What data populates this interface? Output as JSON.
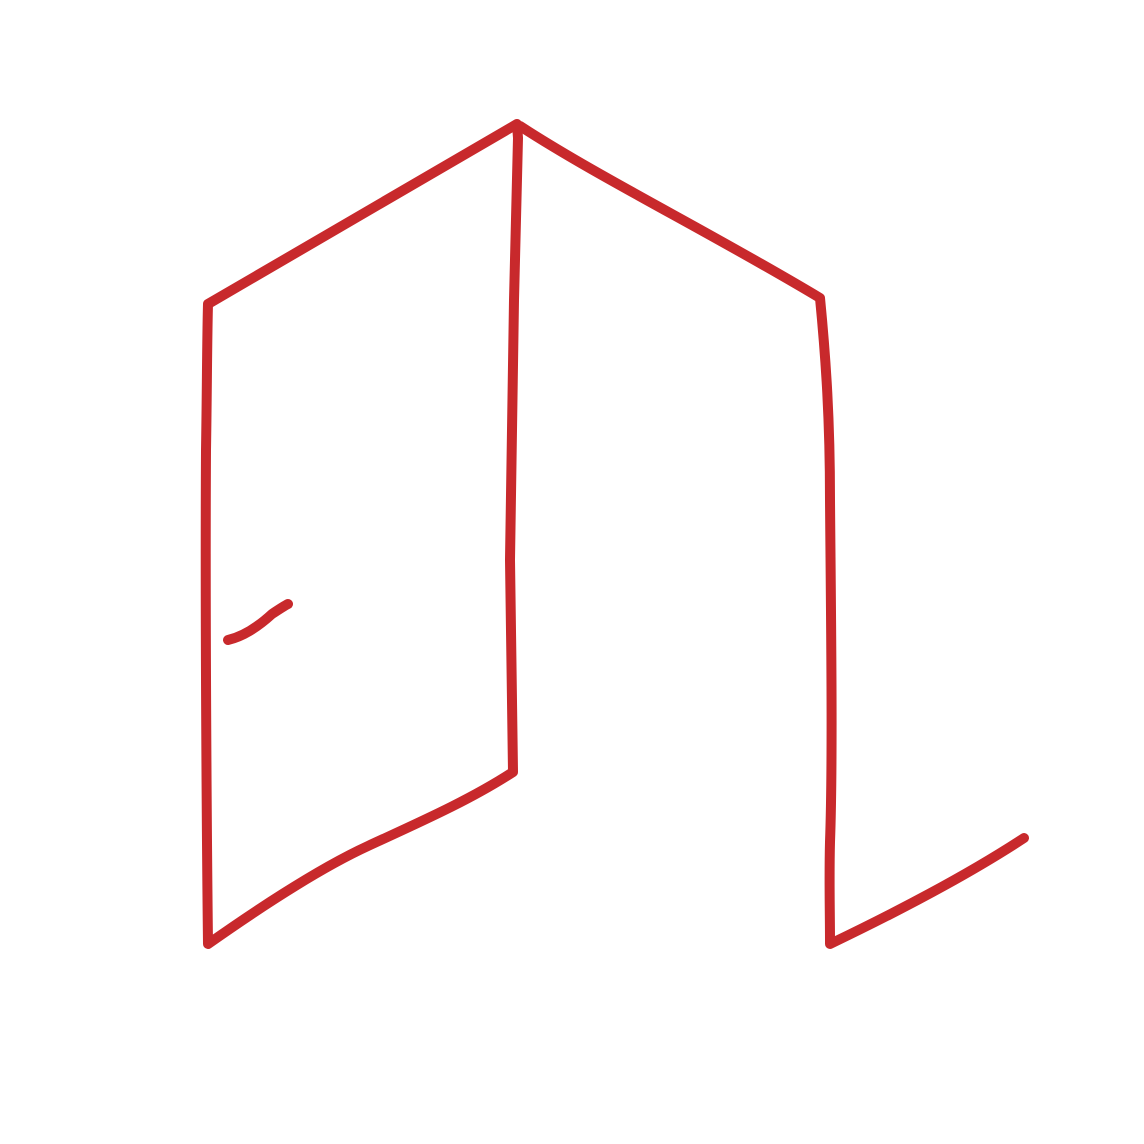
{
  "illustration": {
    "subject": "open-door-icon",
    "stroke_color": "#c8292c",
    "background_color": "#ffffff"
  }
}
